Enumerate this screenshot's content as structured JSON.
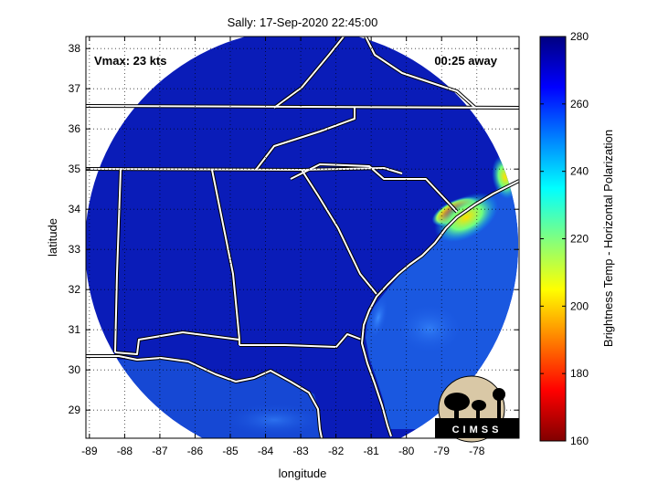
{
  "chart_data": {
    "type": "heatmap",
    "title": "Sally: 17-Sep-2020 22:45:00",
    "xlabel": "longitude",
    "ylabel": "latitude",
    "xlim": [
      -89.1,
      -76.8
    ],
    "ylim": [
      28.3,
      38.3
    ],
    "xticks": [
      -89,
      -88,
      -87,
      -86,
      -85,
      -84,
      -83,
      -82,
      -81,
      -80,
      -79,
      -78
    ],
    "yticks": [
      29,
      30,
      31,
      32,
      33,
      34,
      35,
      36,
      37,
      38
    ],
    "grid": true,
    "annotations": {
      "vmax": "Vmax: 23 kts",
      "time_away": "00:25 away"
    },
    "colorbar": {
      "label": "Brightness Temp - Horizontal Polarization",
      "range": [
        160,
        280
      ],
      "ticks": [
        160,
        180,
        200,
        220,
        240,
        260,
        280
      ],
      "colormap": "jet"
    },
    "swath": {
      "center": [
        -83.1,
        33.7
      ],
      "background_value": 270
    },
    "features": [
      {
        "name": "storm core",
        "lon": -78.6,
        "lat": 33.95,
        "value": 178
      },
      {
        "name": "rain band",
        "lon": -78.3,
        "lat": 33.8,
        "value": 212
      },
      {
        "name": "outer band",
        "lon": -77.2,
        "lat": 34.8,
        "value": 222
      },
      {
        "name": "coastal band",
        "lon": -80.8,
        "lat": 31.3,
        "value": 258
      }
    ],
    "logo_text": "CIMSS"
  }
}
